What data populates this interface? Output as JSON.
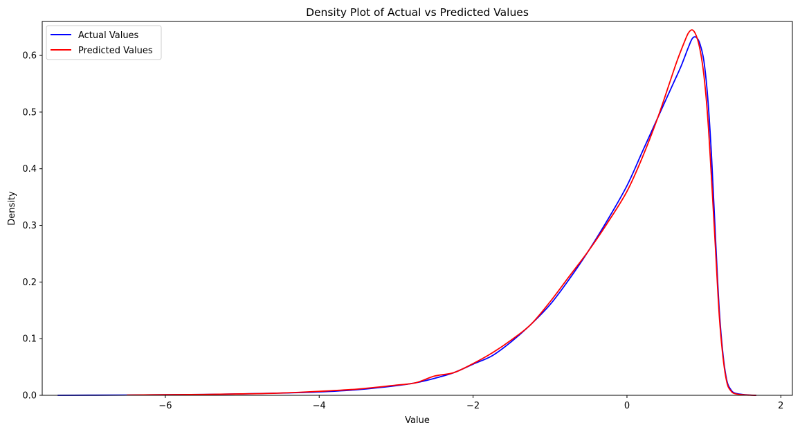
{
  "chart_data": {
    "type": "line",
    "title": "Density Plot of Actual vs Predicted Values",
    "xlabel": "Value",
    "ylabel": "Density",
    "xlim": [
      -7.6,
      2.15
    ],
    "ylim": [
      0,
      0.66
    ],
    "xticks": [
      -6,
      -4,
      -2,
      0,
      2
    ],
    "xtick_labels": [
      "−6",
      "−4",
      "−2",
      "0",
      "2"
    ],
    "yticks": [
      0.0,
      0.1,
      0.2,
      0.3,
      0.4,
      0.5,
      0.6
    ],
    "ytick_labels": [
      "0.0",
      "0.1",
      "0.2",
      "0.3",
      "0.4",
      "0.5",
      "0.6"
    ],
    "grid": false,
    "legend_position": "upper left",
    "series": [
      {
        "name": "Actual Values",
        "color": "#0000ff",
        "x": [
          -7.4,
          -6.5,
          -6.0,
          -5.5,
          -5.0,
          -4.5,
          -4.0,
          -3.5,
          -3.0,
          -2.75,
          -2.5,
          -2.25,
          -2.0,
          -1.75,
          -1.5,
          -1.25,
          -1.0,
          -0.75,
          -0.5,
          -0.25,
          0.0,
          0.2,
          0.4,
          0.6,
          0.7,
          0.8,
          0.85,
          0.9,
          0.95,
          1.0,
          1.05,
          1.1,
          1.15,
          1.2,
          1.25,
          1.3,
          1.35,
          1.4,
          1.5,
          1.6,
          1.68
        ],
        "y": [
          0.0,
          0.0005,
          0.001,
          0.0015,
          0.0025,
          0.004,
          0.006,
          0.01,
          0.017,
          0.022,
          0.03,
          0.04,
          0.055,
          0.07,
          0.095,
          0.125,
          0.16,
          0.205,
          0.255,
          0.31,
          0.37,
          0.43,
          0.49,
          0.55,
          0.58,
          0.615,
          0.63,
          0.632,
          0.62,
          0.59,
          0.525,
          0.42,
          0.28,
          0.15,
          0.07,
          0.025,
          0.01,
          0.004,
          0.0015,
          0.0005,
          0.0
        ]
      },
      {
        "name": "Predicted Values",
        "color": "#ff0000",
        "x": [
          -6.5,
          -6.0,
          -5.5,
          -5.0,
          -4.5,
          -4.0,
          -3.5,
          -3.0,
          -2.75,
          -2.5,
          -2.25,
          -2.0,
          -1.75,
          -1.5,
          -1.25,
          -1.0,
          -0.75,
          -0.5,
          -0.25,
          0.0,
          0.2,
          0.4,
          0.55,
          0.65,
          0.75,
          0.8,
          0.85,
          0.9,
          0.95,
          1.0,
          1.05,
          1.1,
          1.15,
          1.2,
          1.25,
          1.3,
          1.35,
          1.4,
          1.5,
          1.6,
          1.68
        ],
        "y": [
          0.0005,
          0.001,
          0.0015,
          0.0025,
          0.004,
          0.007,
          0.011,
          0.018,
          0.022,
          0.034,
          0.04,
          0.056,
          0.075,
          0.098,
          0.125,
          0.165,
          0.21,
          0.255,
          0.305,
          0.36,
          0.42,
          0.49,
          0.55,
          0.59,
          0.625,
          0.64,
          0.645,
          0.635,
          0.61,
          0.565,
          0.49,
          0.38,
          0.26,
          0.14,
          0.065,
          0.022,
          0.008,
          0.003,
          0.001,
          0.0003,
          0.0
        ]
      }
    ]
  }
}
